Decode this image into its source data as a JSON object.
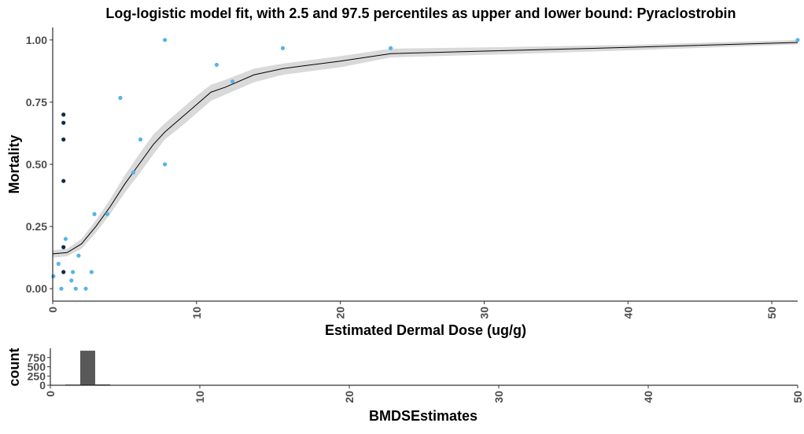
{
  "chart_data": [
    {
      "type": "scatter",
      "title": "Log-logistic model fit, with 2.5 and 97.5 percentiles as upper and lower bound: Pyraclostrobin",
      "xlabel": "Estimated Dermal Dose (ug/g)",
      "ylabel": "Mortality",
      "xlim": [
        0,
        51.8
      ],
      "ylim": [
        -0.05,
        1.05
      ],
      "x_ticks": [
        0,
        10,
        20,
        30,
        40,
        50
      ],
      "y_ticks": [
        0.0,
        0.25,
        0.5,
        0.75,
        1.0
      ],
      "x_tick_labels": [
        "0",
        "10",
        "20",
        "30",
        "40",
        "50"
      ],
      "y_tick_labels": [
        "0.00",
        "0.25",
        "0.50",
        "0.75",
        "1.00"
      ],
      "grid": false,
      "colors": {
        "points_light": "#56b4e9",
        "points_dark": "#132b43",
        "band": "#d9d9d9",
        "fit_line": "#000000"
      },
      "series": [
        {
          "type": "scatter",
          "color": "#56b4e9",
          "points": [
            {
              "x": 0.05,
              "y": 0.05
            },
            {
              "x": 0.4,
              "y": 0.1
            },
            {
              "x": 0.6,
              "y": 0.0
            },
            {
              "x": 0.9,
              "y": 0.2
            },
            {
              "x": 1.3,
              "y": 0.033
            },
            {
              "x": 1.4,
              "y": 0.067
            },
            {
              "x": 1.6,
              "y": 0.0
            },
            {
              "x": 1.8,
              "y": 0.133
            },
            {
              "x": 2.3,
              "y": 0.0
            },
            {
              "x": 2.7,
              "y": 0.067
            },
            {
              "x": 2.9,
              "y": 0.3
            },
            {
              "x": 3.8,
              "y": 0.3
            },
            {
              "x": 4.7,
              "y": 0.767
            },
            {
              "x": 5.6,
              "y": 0.467
            },
            {
              "x": 6.1,
              "y": 0.6
            },
            {
              "x": 7.8,
              "y": 0.5
            },
            {
              "x": 7.8,
              "y": 1.0
            },
            {
              "x": 11.4,
              "y": 0.9
            },
            {
              "x": 12.5,
              "y": 0.833
            },
            {
              "x": 16.0,
              "y": 0.967
            },
            {
              "x": 23.5,
              "y": 0.967
            },
            {
              "x": 51.8,
              "y": 1.0
            }
          ]
        },
        {
          "type": "scatter",
          "color": "#132b43",
          "points": [
            {
              "x": 0.75,
              "y": 0.7
            },
            {
              "x": 0.75,
              "y": 0.667
            },
            {
              "x": 0.75,
              "y": 0.6
            },
            {
              "x": 0.75,
              "y": 0.433
            },
            {
              "x": 0.75,
              "y": 0.167
            },
            {
              "x": 0.75,
              "y": 0.067
            }
          ]
        },
        {
          "type": "line",
          "color": "#000000",
          "x": [
            0,
            1,
            2,
            3,
            4,
            5,
            6,
            7,
            7.8,
            9,
            10,
            11,
            12,
            14,
            16,
            20,
            23.5,
            30,
            40,
            51.8
          ],
          "y": [
            0.14,
            0.145,
            0.18,
            0.25,
            0.33,
            0.42,
            0.5,
            0.58,
            0.63,
            0.69,
            0.74,
            0.79,
            0.81,
            0.86,
            0.885,
            0.915,
            0.945,
            0.955,
            0.97,
            0.99
          ],
          "lower": [
            0.125,
            0.13,
            0.16,
            0.225,
            0.3,
            0.385,
            0.46,
            0.54,
            0.6,
            0.655,
            0.705,
            0.755,
            0.78,
            0.83,
            0.86,
            0.89,
            0.93,
            0.94,
            0.958,
            0.982
          ],
          "upper": [
            0.155,
            0.16,
            0.2,
            0.275,
            0.36,
            0.455,
            0.54,
            0.62,
            0.665,
            0.725,
            0.775,
            0.82,
            0.84,
            0.885,
            0.905,
            0.935,
            0.965,
            0.97,
            0.98,
            1.0
          ]
        }
      ]
    },
    {
      "type": "bar",
      "title": "",
      "xlabel": "BMDSEstimates",
      "ylabel": "count",
      "xlim": [
        0,
        50
      ],
      "ylim": [
        0,
        1000
      ],
      "x_ticks": [
        0,
        10,
        20,
        30,
        40,
        50
      ],
      "y_ticks": [
        0,
        250,
        500,
        750
      ],
      "x_tick_labels": [
        "0",
        "10",
        "20",
        "30",
        "40",
        "50"
      ],
      "y_tick_labels": [
        "0",
        "250",
        "500",
        "750"
      ],
      "grid": false,
      "colors": {
        "bar": "#595959"
      },
      "bars": [
        {
          "x0": 1.0,
          "x1": 2.0,
          "count": 18
        },
        {
          "x0": 2.0,
          "x1": 3.0,
          "count": 935
        },
        {
          "x0": 3.0,
          "x1": 4.0,
          "count": 22
        }
      ]
    }
  ]
}
